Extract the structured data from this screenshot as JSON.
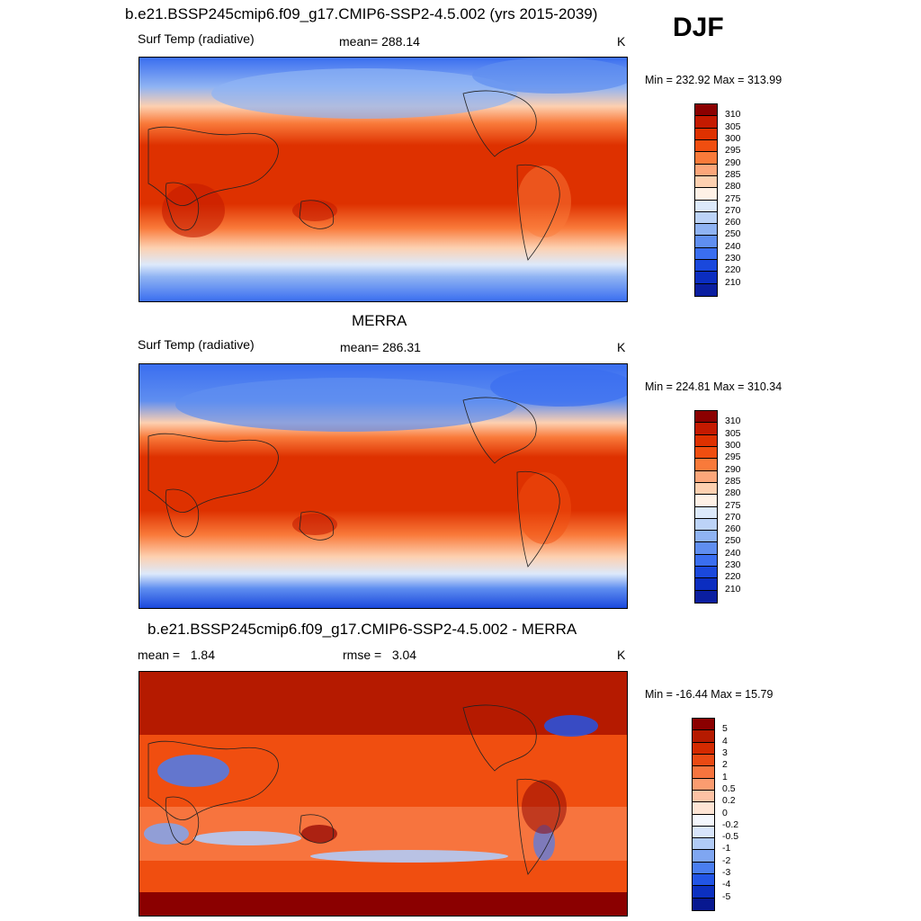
{
  "season": "DJF",
  "panels": [
    {
      "title": "b.e21.BSSP245cmip6.f09_g17.CMIP6-SSP2-4.5.002 (yrs 2015-2039)",
      "left_label": "Surf Temp (radiative)",
      "center_label": "mean= 288.14",
      "units": "K",
      "minmax": "Min = 232.92 Max = 313.99",
      "colorbar_ticks": [
        "310",
        "305",
        "300",
        "295",
        "290",
        "285",
        "280",
        "275",
        "270",
        "260",
        "250",
        "240",
        "230",
        "220",
        "210"
      ],
      "colorbar_colors": [
        "#8b0000",
        "#c41a00",
        "#de3100",
        "#f04e10",
        "#f97a3a",
        "#fca67a",
        "#fdd0b0",
        "#fef1e6",
        "#dce9fb",
        "#bcd3f7",
        "#8fb3f3",
        "#5f8ef0",
        "#3a6ef0",
        "#1a48dc",
        "#0b2dc0",
        "#0a1ea0"
      ]
    },
    {
      "title": "MERRA",
      "left_label": "Surf Temp (radiative)",
      "center_label": "mean= 286.31",
      "units": "K",
      "minmax": "Min = 224.81 Max = 310.34",
      "colorbar_ticks": [
        "310",
        "305",
        "300",
        "295",
        "290",
        "285",
        "280",
        "275",
        "270",
        "260",
        "250",
        "240",
        "230",
        "220",
        "210"
      ],
      "colorbar_colors": [
        "#8b0000",
        "#c41a00",
        "#de3100",
        "#f04e10",
        "#f97a3a",
        "#fca67a",
        "#fdd0b0",
        "#fef1e6",
        "#dce9fb",
        "#bcd3f7",
        "#8fb3f3",
        "#5f8ef0",
        "#3a6ef0",
        "#1a48dc",
        "#0b2dc0",
        "#0a1ea0"
      ]
    },
    {
      "title": "b.e21.BSSP245cmip6.f09_g17.CMIP6-SSP2-4.5.002 - MERRA",
      "left_label": "mean =   1.84",
      "center_label": "rmse =   3.04",
      "units": "K",
      "minmax": "Min = -16.44 Max =  15.79",
      "colorbar_ticks": [
        "5",
        "4",
        "3",
        "2",
        "1",
        "0.5",
        "0.2",
        "0",
        "-0.2",
        "-0.5",
        "-1",
        "-2",
        "-3",
        "-4",
        "-5"
      ],
      "colorbar_colors": [
        "#8b0000",
        "#b51a00",
        "#d42a00",
        "#ea4a14",
        "#f7743e",
        "#fb9c70",
        "#fdc2a4",
        "#fee4d4",
        "#f4f7fd",
        "#d8e5fb",
        "#b1cbf6",
        "#7fa6f1",
        "#4a7ef0",
        "#2255e6",
        "#0c30c0",
        "#081890"
      ]
    }
  ]
}
